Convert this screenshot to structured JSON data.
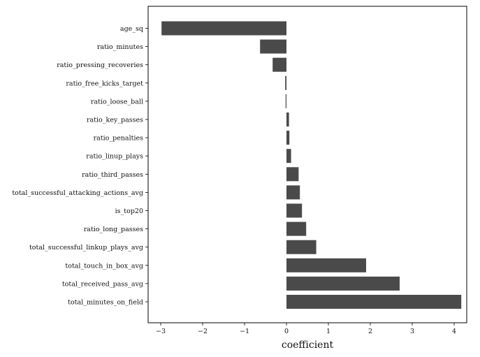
{
  "colors": {
    "bar": "#4a4a4a",
    "axis": "#000000",
    "background": "#ffffff"
  },
  "chart_data": {
    "type": "bar",
    "orientation": "horizontal",
    "title": "",
    "xlabel": "coefficient",
    "ylabel": "",
    "xlim": [
      -3.3,
      4.3
    ],
    "xticks": [
      -3,
      -2,
      -1,
      0,
      1,
      2,
      3,
      4
    ],
    "xtick_labels": [
      "−3",
      "−2",
      "−1",
      "0",
      "1",
      "2",
      "3",
      "4"
    ],
    "grid": false,
    "legend": "none",
    "categories": [
      "age_sq",
      "ratio_minutes",
      "ratio_pressing_recoveries",
      "ratio_free_kicks_target",
      "ratio_loose_ball",
      "ratio_key_passes",
      "ratio_penalties",
      "ratio_linup_plays",
      "ratio_third_passes",
      "total_successful_attacking_actions_avg",
      "is_top20",
      "ratio_long_passes",
      "total_successful_linkup_plays_avg",
      "total_touch_in_box_avg",
      "total_received_pass_avg",
      "total_minutes_on_field"
    ],
    "values": [
      -2.98,
      -0.63,
      -0.33,
      -0.03,
      -0.02,
      0.06,
      0.07,
      0.11,
      0.29,
      0.32,
      0.37,
      0.47,
      0.71,
      1.9,
      2.7,
      4.17
    ]
  }
}
